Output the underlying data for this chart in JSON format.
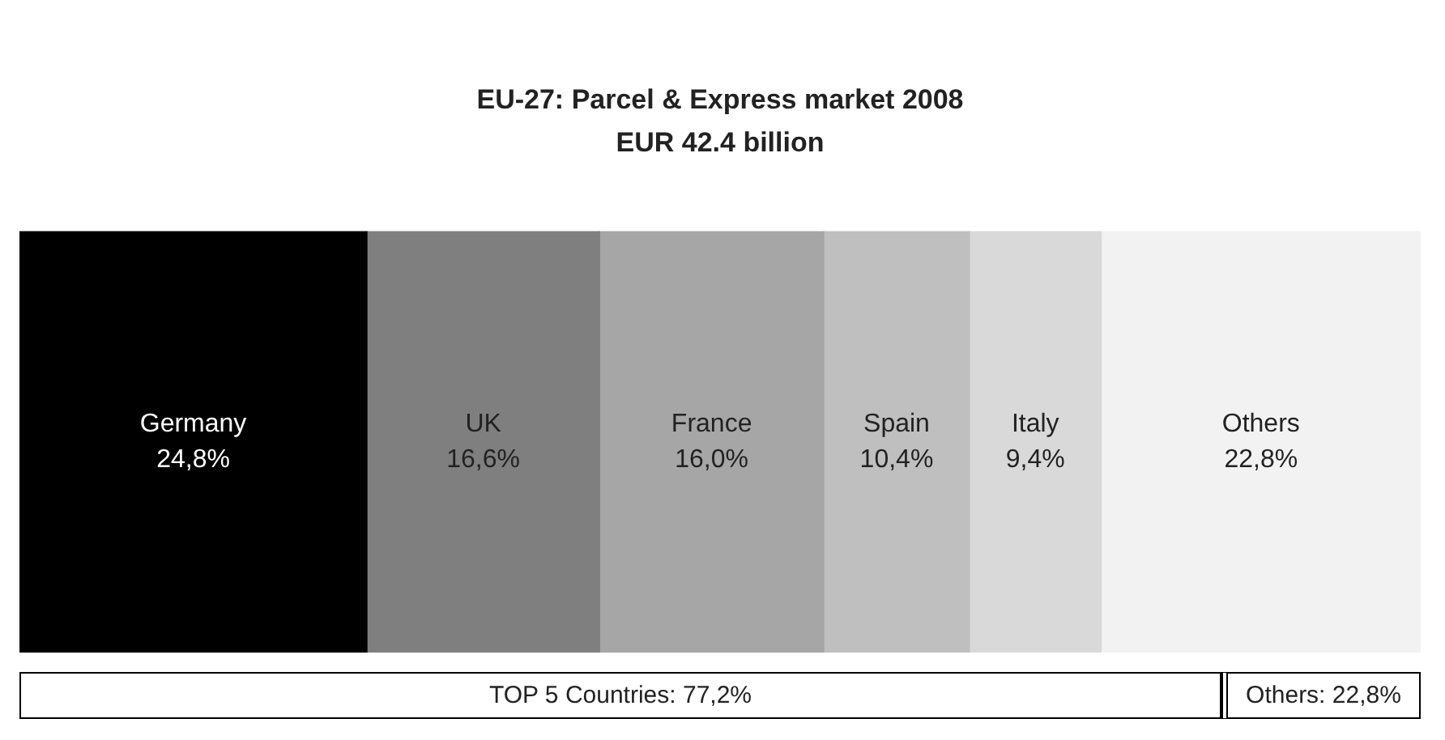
{
  "chart_data": {
    "type": "bar",
    "orientation": "horizontal",
    "stacked": true,
    "title": "EU-27: Parcel & Express market 2008",
    "subtitle": "EUR 42.4 billion",
    "categories": [
      null
    ],
    "xlim": [
      0,
      100
    ],
    "legend": false,
    "series": [
      {
        "name": "Germany",
        "color": "#000000",
        "values": [
          24.8
        ],
        "value_labels": [
          "24,8%"
        ]
      },
      {
        "name": "UK",
        "color": "#7f7f7f",
        "values": [
          16.6
        ],
        "value_labels": [
          "16,6%"
        ]
      },
      {
        "name": "France",
        "color": "#a6a6a6",
        "values": [
          16.0
        ],
        "value_labels": [
          "16,0%"
        ]
      },
      {
        "name": "Spain",
        "color": "#bfbfbf",
        "values": [
          10.4
        ],
        "value_labels": [
          "10,4%"
        ]
      },
      {
        "name": "Italy",
        "color": "#d9d9d9",
        "values": [
          9.4
        ],
        "value_labels": [
          "9,4%"
        ]
      },
      {
        "name": "Others",
        "color": "#f2f2f2",
        "values": [
          22.8
        ],
        "value_labels": [
          "22,8%"
        ]
      }
    ],
    "annotations": [
      "TOP 5 Countries: 77,2%",
      "Others: 22,8%"
    ]
  }
}
